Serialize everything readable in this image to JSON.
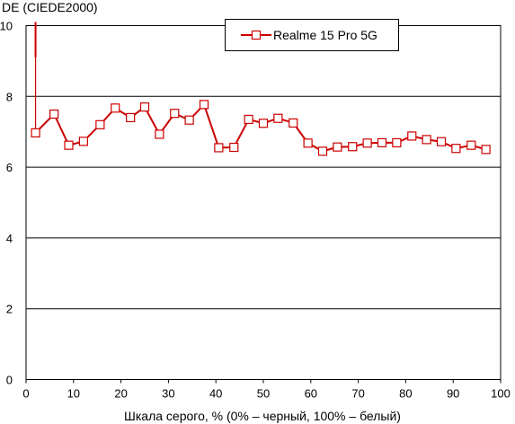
{
  "chart_data": {
    "type": "line",
    "ylabel": "DE (CIEDE2000)",
    "xlabel": "Шкала серого, % (0% – черный, 100% – белый)",
    "xlim": [
      0,
      100
    ],
    "ylim": [
      0,
      10
    ],
    "xticks": [
      0,
      10,
      20,
      30,
      40,
      50,
      60,
      70,
      80,
      90,
      100
    ],
    "yticks": [
      0,
      2,
      4,
      6,
      8,
      10
    ],
    "grid": "horizontal",
    "legend_position": "top-right",
    "series": [
      {
        "name": "Realme 15 Pro 5G",
        "color": "#cc0000",
        "line_segment": {
          "x": [
            2.0,
            2.0
          ],
          "y": [
            10.1,
            9.1
          ]
        },
        "x": [
          2.0,
          5.9,
          9.0,
          12.1,
          15.6,
          18.8,
          22.0,
          25.0,
          28.1,
          31.3,
          34.4,
          37.5,
          40.6,
          43.8,
          46.9,
          50.0,
          53.1,
          56.3,
          59.4,
          62.5,
          65.6,
          68.8,
          71.9,
          75.0,
          78.1,
          81.3,
          84.4,
          87.5,
          90.6,
          93.8,
          96.9
        ],
        "y": [
          6.97,
          7.5,
          6.62,
          6.73,
          7.2,
          7.67,
          7.4,
          7.7,
          6.93,
          7.52,
          7.33,
          7.77,
          6.55,
          6.56,
          7.35,
          7.24,
          7.38,
          7.25,
          6.68,
          6.45,
          6.57,
          6.58,
          6.68,
          6.69,
          6.69,
          6.88,
          6.78,
          6.72,
          6.53,
          6.62,
          6.5
        ]
      }
    ]
  }
}
